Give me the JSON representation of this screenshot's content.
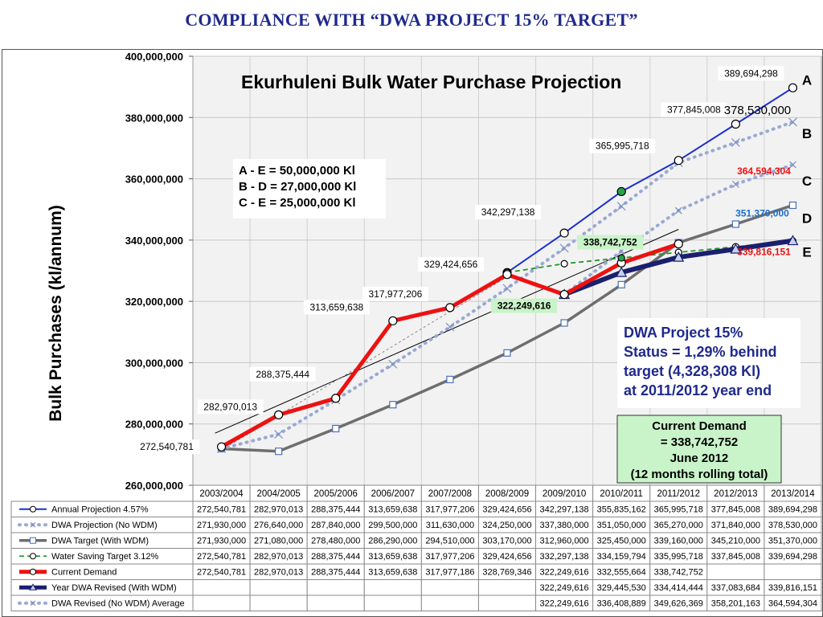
{
  "page": {
    "title": "COMPLIANCE WITH “DWA PROJECT 15% TARGET”"
  },
  "chart_data": {
    "type": "line",
    "title": "Ekurhuleni Bulk Water Purchase Projection",
    "ylabel": "Bulk Purchases (kl/annum)",
    "xlabel": "",
    "ylim": [
      260000000,
      400000000
    ],
    "yticks": [
      260000000,
      280000000,
      300000000,
      320000000,
      340000000,
      360000000,
      380000000,
      400000000
    ],
    "ytick_labels": [
      "260,000,000",
      "280,000,000",
      "300,000,000",
      "320,000,000",
      "340,000,000",
      "360,000,000",
      "380,000,000",
      "400,000,000"
    ],
    "grid": true,
    "legend": "table-below",
    "categories": [
      "2003/2004",
      "2004/2005",
      "2005/2006",
      "2006/2007",
      "2007/2008",
      "2008/2009",
      "2009/2010",
      "2010/2011",
      "2011/2012",
      "2012/2013",
      "2013/2014"
    ],
    "series": [
      {
        "name": "Annual Projection 4.57%",
        "color": "#1a2fd0",
        "style": "solid-circle",
        "values": [
          272540781,
          282970013,
          288375444,
          313659638,
          317977206,
          329424656,
          342297138,
          355835162,
          365995718,
          377845008,
          389694298
        ],
        "cells": [
          "272,540,781",
          "282,970,013",
          "288,375,444",
          "313,659,638",
          "317,977,206",
          "329,424,656",
          "342,297,138",
          "355,835,162",
          "365,995,718",
          "377,845,008",
          "389,694,298"
        ]
      },
      {
        "name": "DWA Projection (No WDM)",
        "color": "#9aa9d3",
        "style": "dotted-x",
        "values": [
          271930000,
          276640000,
          287840000,
          299500000,
          311630000,
          324250000,
          337380000,
          351050000,
          365270000,
          371840000,
          378530000
        ],
        "cells": [
          "271,930,000",
          "276,640,000",
          "287,840,000",
          "299,500,000",
          "311,630,000",
          "324,250,000",
          "337,380,000",
          "351,050,000",
          "365,270,000",
          "371,840,000",
          "378,530,000"
        ]
      },
      {
        "name": "DWA Target (With WDM)",
        "color": "#6e6e6e",
        "style": "solid-square",
        "values": [
          271930000,
          271080000,
          278480000,
          286290000,
          294510000,
          303170000,
          312960000,
          325450000,
          339160000,
          345210000,
          351370000
        ],
        "cells": [
          "271,930,000",
          "271,080,000",
          "278,480,000",
          "286,290,000",
          "294,510,000",
          "303,170,000",
          "312,960,000",
          "325,450,000",
          "339,160,000",
          "345,210,000",
          "351,370,000"
        ]
      },
      {
        "name": "Water Saving Target 3.12%",
        "color": "#1f9a2a",
        "style": "dashed",
        "values": [
          272540781,
          282970013,
          288375444,
          313659638,
          317977206,
          329424656,
          332297138,
          334159794,
          335995718,
          337845008,
          339694298
        ],
        "cells": [
          "272,540,781",
          "282,970,013",
          "288,375,444",
          "313,659,638",
          "317,977,206",
          "329,424,656",
          "332,297,138",
          "334,159,794",
          "335,995,718",
          "337,845,008",
          "339,694,298"
        ]
      },
      {
        "name": "Current Demand",
        "color": "#ee1111",
        "style": "thick-circle",
        "values": [
          272540781,
          282970013,
          288375444,
          313659638,
          317977186,
          328769346,
          322249616,
          332555664,
          338742752,
          null,
          null
        ],
        "cells": [
          "272,540,781",
          "282,970,013",
          "288,375,444",
          "313,659,638",
          "317,977,186",
          "328,769,346",
          "322,249,616",
          "332,555,664",
          "338,742,752",
          "",
          ""
        ]
      },
      {
        "name": "Year DWA Revised (With WDM)",
        "color": "#1a1f6e",
        "style": "thick-triangle",
        "values": [
          null,
          null,
          null,
          null,
          null,
          null,
          322249616,
          329445530,
          334414444,
          337083684,
          339816151
        ],
        "cells": [
          "",
          "",
          "",
          "",
          "",
          "",
          "322,249,616",
          "329,445,530",
          "334,414,444",
          "337,083,684",
          "339,816,151"
        ]
      },
      {
        "name": "DWA Revised (No WDM) Average",
        "color": "#9aa9d3",
        "style": "dotted",
        "values": [
          null,
          null,
          null,
          null,
          null,
          null,
          322249616,
          336408889,
          349626369,
          358201163,
          364594304
        ],
        "cells": [
          "",
          "",
          "",
          "",
          "",
          "",
          "322,249,616",
          "336,408,889",
          "349,626,369",
          "358,201,163",
          "364,594,304"
        ]
      }
    ],
    "point_labels": [
      {
        "text": "272,540,781",
        "i": 0,
        "v": 272540781,
        "color": "#000000",
        "box": true
      },
      {
        "text": "282,970,013",
        "i": 1,
        "v": 282970013,
        "color": "#000000",
        "box": true
      },
      {
        "text": "288,375,444",
        "i": 2,
        "v": 288375444,
        "color": "#000000",
        "box": true
      },
      {
        "text": "313,659,638",
        "i": 3,
        "v": 313659638,
        "color": "#000000",
        "box": true
      },
      {
        "text": "317,977,206",
        "i": 4,
        "v": 317977206,
        "color": "#000000",
        "box": true
      },
      {
        "text": "329,424,656",
        "i": 5,
        "v": 329424656,
        "color": "#000000",
        "box": true
      },
      {
        "text": "342,297,138",
        "i": 6,
        "v": 342297138,
        "color": "#000000",
        "box": true
      },
      {
        "text": "365,995,718",
        "i": 8,
        "v": 365995718,
        "color": "#000000",
        "box": true
      },
      {
        "text": "377,845,008",
        "i": 9,
        "v": 377845008,
        "color": "#000000",
        "box": true
      },
      {
        "text": "389,694,298",
        "i": 10,
        "v": 389694298,
        "color": "#000000",
        "box": true
      },
      {
        "text": "378,530,000",
        "i": 10,
        "v": 378530000,
        "color": "#000000",
        "box": false
      },
      {
        "text": "364,594,304",
        "i": 10,
        "v": 364594304,
        "color": "#ee1111",
        "box": false
      },
      {
        "text": "351,370,000",
        "i": 10,
        "v": 351370000,
        "color": "#1a6fd0",
        "box": false
      },
      {
        "text": "339,816,151",
        "i": 10,
        "v": 339816151,
        "color": "#ee1111",
        "box": false
      },
      {
        "text": "338,742,752",
        "i": 8,
        "v": 338742752,
        "color": "#000000",
        "box": true,
        "fill": "#c9f3c9"
      },
      {
        "text": "322,249,616",
        "i": 6,
        "v": 322249616,
        "color": "#000000",
        "box": true,
        "fill": "#c9f3c9"
      }
    ],
    "line_letters": [
      {
        "text": "A",
        "v": 389694298
      },
      {
        "text": "B",
        "v": 378530000
      },
      {
        "text": "C",
        "v": 364594304
      },
      {
        "text": "D",
        "v": 351370000
      },
      {
        "text": "E",
        "v": 339816151
      }
    ],
    "annotations": {
      "differences": [
        "A - E = 50,000,000 Kl",
        "B - D = 27,000,000 Kl",
        "C - E = 25,000,000 Kl"
      ],
      "status": [
        "DWA Project 15%",
        "Status = 1,29% behind",
        " target (4,328,308 Kl)",
        "at 2011/2012 year end"
      ],
      "current_demand": [
        "Current Demand",
        "= 338,742,752",
        "June 2012",
        "(12 months rolling total)"
      ]
    }
  }
}
